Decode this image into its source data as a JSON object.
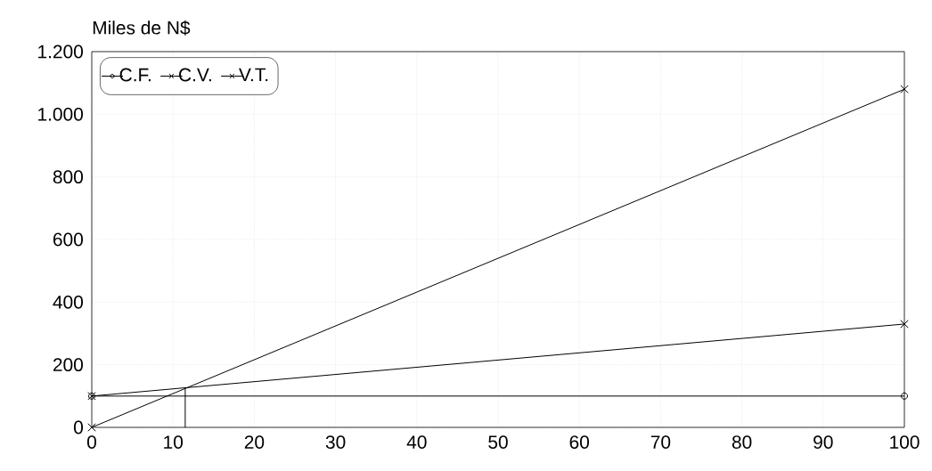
{
  "chart_data": {
    "type": "line",
    "ylabel": "Miles de N$",
    "xlim": [
      0,
      100
    ],
    "xticks": [
      0,
      10,
      20,
      30,
      40,
      50,
      60,
      70,
      80,
      90,
      100
    ],
    "ylim": [
      0,
      1200
    ],
    "yticks": [
      0,
      200,
      400,
      600,
      800,
      {
        "value": 1000,
        "label": "1.000"
      },
      {
        "value": 1200,
        "label": "1.200"
      }
    ],
    "grid": true,
    "legend": "top left",
    "line_style": "solid",
    "series": [
      {
        "name": "C.F.",
        "color": "#000000",
        "marker": "circle",
        "x": [
          0,
          100
        ],
        "values": [
          100,
          100
        ]
      },
      {
        "name": "C.V.",
        "color": "#000000",
        "marker": "cross",
        "x": [
          0,
          100
        ],
        "values": [
          100,
          330
        ]
      },
      {
        "name": "V.T.",
        "color": "#000000",
        "marker": "cross",
        "x": [
          0,
          100
        ],
        "values": [
          0,
          1080
        ]
      },
      {
        "color": "#000000",
        "marker": "none",
        "x": [
          11.5,
          11.5
        ],
        "values": [
          0,
          125
        ]
      }
    ]
  }
}
